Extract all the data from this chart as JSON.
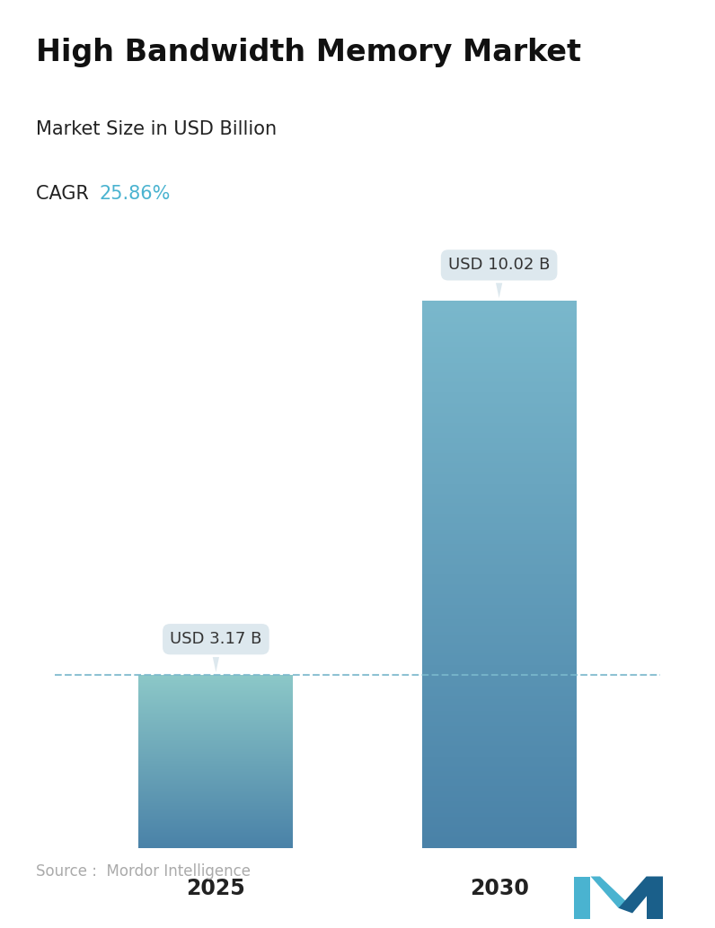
{
  "title": "High Bandwidth Memory Market",
  "subtitle": "Market Size in USD Billion",
  "cagr_label": "CAGR ",
  "cagr_value": "25.86%",
  "cagr_color": "#4ab3d0",
  "years": [
    "2025",
    "2030"
  ],
  "values": [
    3.17,
    10.02
  ],
  "labels": [
    "USD 3.17 B",
    "USD 10.02 B"
  ],
  "bar_colors_2025": {
    "top": "#8cc8c8",
    "bottom": "#4a82a8"
  },
  "bar_colors_2030": {
    "top": "#7ab8cc",
    "bottom": "#4a82a8"
  },
  "dashed_line_color": "#7ab8cc",
  "callout_bg": "#dde8ee",
  "callout_text": "#333333",
  "source_text": "Source :  Mordor Intelligence",
  "source_color": "#aaaaaa",
  "background_color": "#ffffff",
  "title_fontsize": 24,
  "subtitle_fontsize": 15,
  "cagr_fontsize": 15,
  "label_fontsize": 13,
  "year_fontsize": 17,
  "source_fontsize": 12,
  "logo_color1": "#4ab3d0",
  "logo_color2": "#1a5f8a"
}
